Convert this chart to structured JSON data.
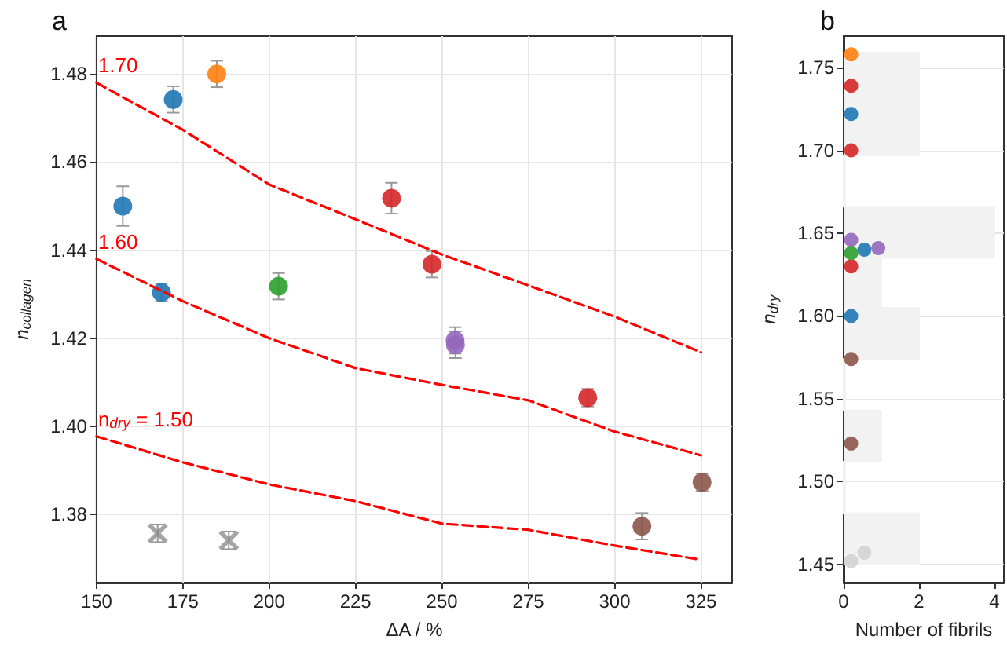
{
  "chart_data": [
    {
      "type": "scatter",
      "title": "a",
      "xlabel": "ΔA / %",
      "ylabel": "n$_{collagen}$",
      "xlim": [
        150,
        334
      ],
      "ylim": [
        1.3645,
        1.4886
      ],
      "xticks": [
        150,
        175,
        200,
        225,
        250,
        275,
        300,
        325
      ],
      "yticks": [
        1.38,
        {
          "value": 1.4,
          "label": "1.40"
        },
        1.42,
        1.44,
        1.46,
        1.48
      ],
      "grid": true,
      "legend": false,
      "marker": "circle",
      "series": [
        {
          "color": "#1f77b4",
          "x": [
            157.6,
            172.2,
            168.8
          ],
          "values": [
            1.45,
            1.4742,
            1.4304
          ],
          "errors": [
            0.0045,
            0.003,
            0.002
          ]
        },
        {
          "color": "#ff7f0e",
          "x": [
            184.8
          ],
          "values": [
            1.48
          ],
          "errors": [
            0.003
          ]
        },
        {
          "color": "#2ca02c",
          "x": [
            202.7
          ],
          "values": [
            1.4318
          ],
          "errors": [
            0.003
          ]
        },
        {
          "color": "#d62728",
          "x": [
            235.4,
            247.1,
            292.2
          ],
          "values": [
            1.4518,
            1.4368,
            1.4065
          ],
          "errors": [
            0.0035,
            0.003,
            0.002
          ]
        },
        {
          "color": "#9467bd",
          "x": [
            253.8,
            253.9
          ],
          "values": [
            1.4195,
            1.4185
          ],
          "errors": [
            0.003,
            0.003
          ]
        },
        {
          "color": "#8c564b",
          "x": [
            307.9,
            325.3
          ],
          "values": [
            1.3773,
            1.3873
          ],
          "errors": [
            0.003,
            0.002
          ]
        },
        {
          "color": "#7f7f7f",
          "marker": "cross",
          "x": [
            167.7,
            188.3
          ],
          "values": [
            1.3757,
            1.3741
          ],
          "errors": [
            0.002,
            0.002
          ]
        },
        {
          "type": "line",
          "name": "1.70",
          "color": "#ff0000",
          "line_style": "dashed",
          "marker": "none",
          "x": [
            150,
            175,
            200,
            225,
            250,
            275,
            300,
            325
          ],
          "values": [
            1.478,
            1.4673,
            1.4549,
            1.447,
            1.439,
            1.432,
            1.4249,
            1.4168
          ]
        },
        {
          "type": "line",
          "name": "1.60",
          "color": "#ff0000",
          "line_style": "dashed",
          "marker": "none",
          "x": [
            150,
            175,
            200,
            225,
            250,
            275,
            300,
            325
          ],
          "values": [
            1.438,
            1.4284,
            1.42,
            1.4132,
            1.4094,
            1.4059,
            1.3988,
            1.3934
          ]
        },
        {
          "type": "line",
          "name": "n$_{dry}$ = 1.50",
          "color": "#ff0000",
          "line_style": "dashed",
          "marker": "none",
          "x": [
            150,
            175,
            200,
            225,
            250,
            275,
            300,
            325
          ],
          "values": [
            1.3977,
            1.3918,
            1.3868,
            1.383,
            1.3779,
            1.3765,
            1.3729,
            1.3697
          ]
        }
      ]
    },
    {
      "type": "histogram",
      "orientation": "horizontal",
      "title": "b",
      "xlabel": "Number of fibrils",
      "ylabel": "n$_{dry}$",
      "xlim": [
        0,
        4.25
      ],
      "ylim": [
        1.439,
        1.769
      ],
      "xticks": [
        0,
        2,
        4
      ],
      "yticks": [
        1.45,
        {
          "value": 1.5,
          "label": "1.50"
        },
        1.55,
        {
          "value": 1.6,
          "label": "1.60"
        },
        1.65,
        {
          "value": 1.7,
          "label": "1.70"
        },
        1.75
      ],
      "grid": "y",
      "legend": false,
      "color": "#f2f2f2",
      "bins": [
        1.45,
        1.481,
        1.512,
        1.543,
        1.574,
        1.605,
        1.635,
        1.666,
        1.697,
        1.728,
        1.759
      ],
      "values": [
        2,
        0,
        1,
        0,
        2,
        1,
        4,
        0,
        2,
        2
      ],
      "series": [
        {
          "type": "scatter",
          "color": "#ff7f0e",
          "values": [
            0.2
          ],
          "x": [
            1.758
          ]
        },
        {
          "type": "scatter",
          "color": "#d62728",
          "values": [
            0.2,
            0.2,
            0.2
          ],
          "x": [
            1.739,
            1.7,
            1.63
          ]
        },
        {
          "type": "scatter",
          "color": "#1f77b4",
          "values": [
            0.2,
            0.55,
            0.2
          ],
          "x": [
            1.722,
            1.64,
            1.6
          ]
        },
        {
          "type": "scatter",
          "color": "#9467bd",
          "values": [
            0.2,
            0.92
          ],
          "x": [
            1.646,
            1.641
          ]
        },
        {
          "type": "scatter",
          "color": "#2ca02c",
          "values": [
            0.2
          ],
          "x": [
            1.638
          ]
        },
        {
          "type": "scatter",
          "color": "#8c564b",
          "values": [
            0.2,
            0.2
          ],
          "x": [
            1.574,
            1.523
          ]
        },
        {
          "type": "scatter",
          "color": "#d3d3d3",
          "values": [
            0.2,
            0.55
          ],
          "x": [
            1.452,
            1.457
          ]
        }
      ]
    }
  ]
}
